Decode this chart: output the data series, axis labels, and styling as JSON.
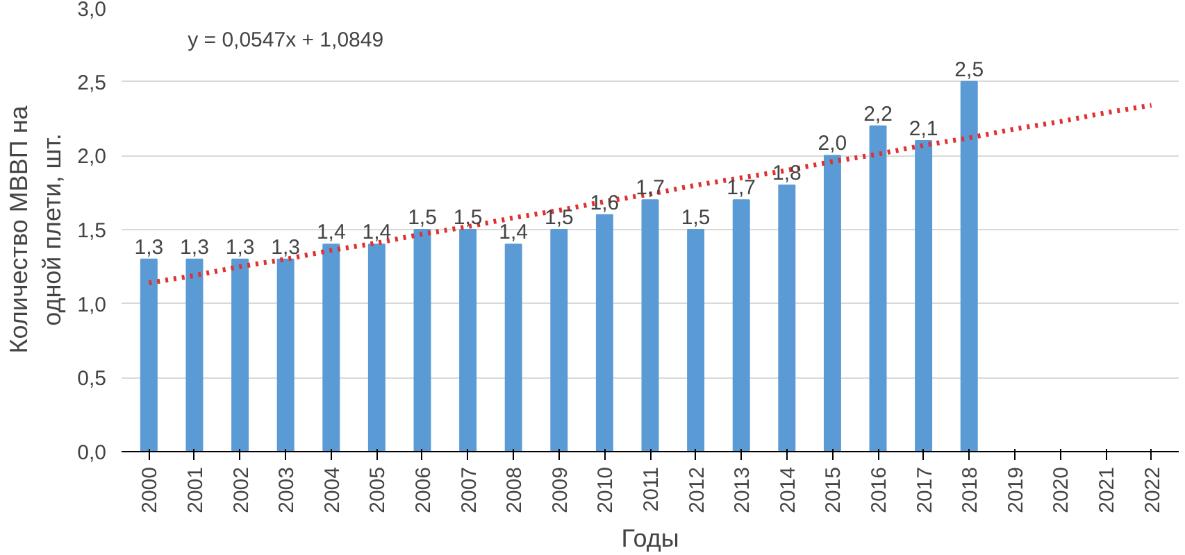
{
  "chart_data": {
    "type": "bar",
    "xlabel": "Годы",
    "ylabel": "Количество МВВП на одной плети, шт.",
    "categories": [
      "2000",
      "2001",
      "2002",
      "2003",
      "2004",
      "2005",
      "2006",
      "2007",
      "2008",
      "2009",
      "2010",
      "2011",
      "2012",
      "2013",
      "2014",
      "2015",
      "2016",
      "2017",
      "2018",
      "2019",
      "2020",
      "2021",
      "2022"
    ],
    "series": [
      {
        "color": "#5b9bd5",
        "values": [
          1.3,
          1.3,
          1.3,
          1.3,
          1.4,
          1.4,
          1.5,
          1.5,
          1.4,
          1.5,
          1.6,
          1.7,
          1.5,
          1.7,
          1.8,
          2.0,
          2.2,
          2.1,
          2.5,
          null,
          null,
          null,
          null
        ],
        "value_labels": [
          "1,3",
          "1,3",
          "1,3",
          "1,3",
          "1,4",
          "1,4",
          "1,5",
          "1,5",
          "1,4",
          "1,5",
          "1,6",
          "1,7",
          "1,5",
          "1,7",
          "1,8",
          "2,0",
          "2,2",
          "2,1",
          "2,5",
          null,
          null,
          null,
          null
        ]
      },
      {
        "type": "line",
        "color": "#e03030",
        "line_style": "dotted",
        "values": [
          1.14,
          1.19,
          1.25,
          1.3,
          1.36,
          1.41,
          1.47,
          1.52,
          1.58,
          1.63,
          1.69,
          1.74,
          1.8,
          1.85,
          1.9,
          1.96,
          2.01,
          2.07,
          2.12,
          2.18,
          2.23,
          2.29,
          2.34
        ]
      }
    ],
    "annotations": [
      "y = 0,0547x + 1,0849"
    ],
    "ylim": [
      0,
      3
    ],
    "yticks": [
      {
        "value": 0,
        "label": "0,0"
      },
      {
        "value": 0.5,
        "label": "0,5"
      },
      {
        "value": 1,
        "label": "1,0"
      },
      {
        "value": 1.5,
        "label": "1,5"
      },
      {
        "value": 2,
        "label": "2,0"
      },
      {
        "value": 2.5,
        "label": "2,5"
      },
      {
        "value": 3,
        "label": "3,0"
      }
    ],
    "grid": "y"
  }
}
